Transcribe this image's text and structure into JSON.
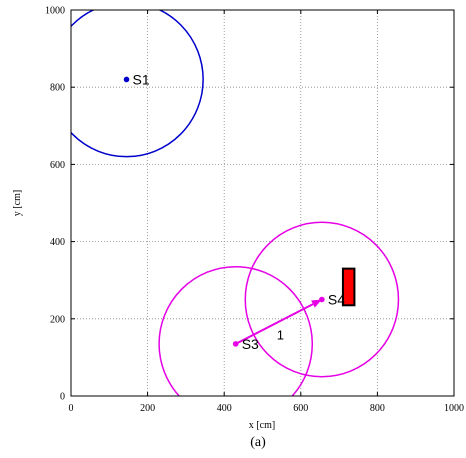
{
  "chart_data": {
    "type": "scatter",
    "xlabel": "x [cm]",
    "ylabel": "y [cm]",
    "xlim": [
      0,
      1000
    ],
    "ylim": [
      0,
      1000
    ],
    "xticks": [
      0,
      200,
      400,
      600,
      800,
      1000
    ],
    "yticks": [
      0,
      200,
      400,
      600,
      800,
      1000
    ],
    "grid": true,
    "caption": "(a)",
    "sensors": [
      {
        "label": "S1",
        "x": 145,
        "y": 820,
        "radius": 200,
        "color": "#0000cc"
      },
      {
        "label": "S3",
        "x": 430,
        "y": 135,
        "radius": 200,
        "color": "#e600e6"
      },
      {
        "label": "S4",
        "x": 655,
        "y": 250,
        "radius": 200,
        "color": "#e600e6"
      }
    ],
    "links": [
      {
        "from": "S3",
        "to": "S4",
        "label": "1",
        "color": "#e600e6"
      }
    ],
    "target": {
      "x_min": 710,
      "x_max": 740,
      "y_min": 235,
      "y_max": 330,
      "color": "#ff0000"
    }
  }
}
